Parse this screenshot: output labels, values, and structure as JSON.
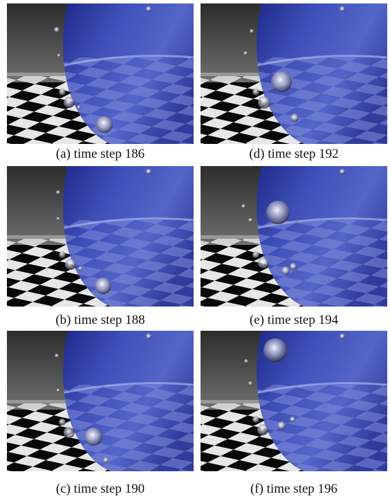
{
  "figure": {
    "panels": [
      {
        "caption": "(a) time step 186"
      },
      {
        "caption": "(d) time step 192"
      },
      {
        "caption": "(b) time step 188"
      },
      {
        "caption": "(e) time step 194"
      },
      {
        "caption": "(c) time step 190"
      },
      {
        "caption": "(f) time step 196"
      }
    ]
  }
}
